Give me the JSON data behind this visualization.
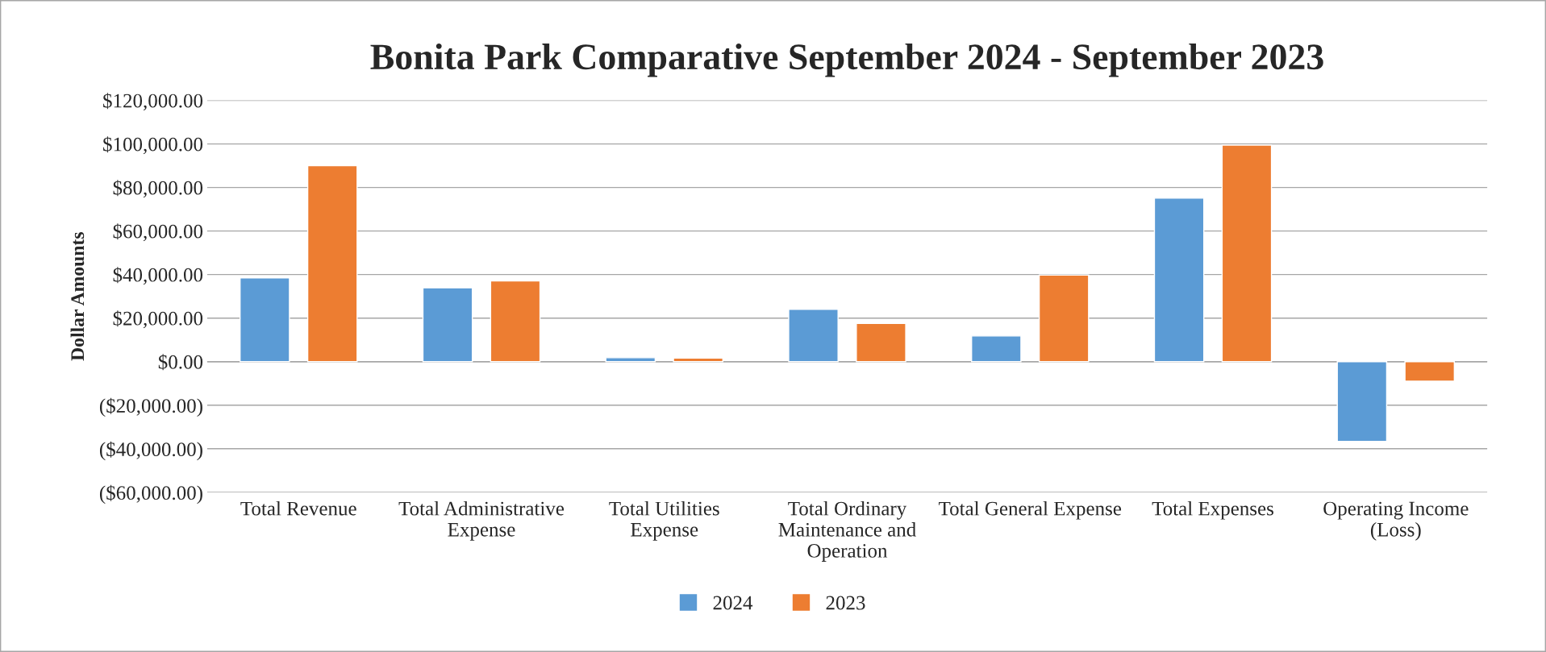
{
  "chart_data": {
    "type": "bar",
    "title": "Bonita Park Comparative September 2024 - September 2023",
    "ylabel": "Dollar Amounts",
    "categories": [
      "Total Revenue",
      "Total Administrative Expense",
      "Total Utilities Expense",
      "Total Ordinary Maintenance and Operation",
      "Total General Expense",
      "Total Expenses",
      "Operating Income (Loss)"
    ],
    "series": [
      {
        "name": "2024",
        "color": "#5b9bd5",
        "values": [
          38500,
          33900,
          1800,
          24000,
          11800,
          75100,
          -36600
        ]
      },
      {
        "name": "2023",
        "color": "#ed7d31",
        "values": [
          90000,
          37100,
          1600,
          17600,
          39800,
          99500,
          -9000
        ]
      }
    ],
    "ylim": [
      -60000,
      120000
    ],
    "yticks": [
      {
        "value": -60000,
        "label": "($60,000.00)"
      },
      {
        "value": -40000,
        "label": "($40,000.00)"
      },
      {
        "value": -20000,
        "label": "($20,000.00)"
      },
      {
        "value": 0,
        "label": "$0.00"
      },
      {
        "value": 20000,
        "label": "$20,000.00"
      },
      {
        "value": 40000,
        "label": "$40,000.00"
      },
      {
        "value": 60000,
        "label": "$60,000.00"
      },
      {
        "value": 80000,
        "label": "$80,000.00"
      },
      {
        "value": 100000,
        "label": "$100,000.00"
      },
      {
        "value": 120000,
        "label": "$120,000.00"
      }
    ],
    "grid": "y",
    "legend": "bottom"
  }
}
